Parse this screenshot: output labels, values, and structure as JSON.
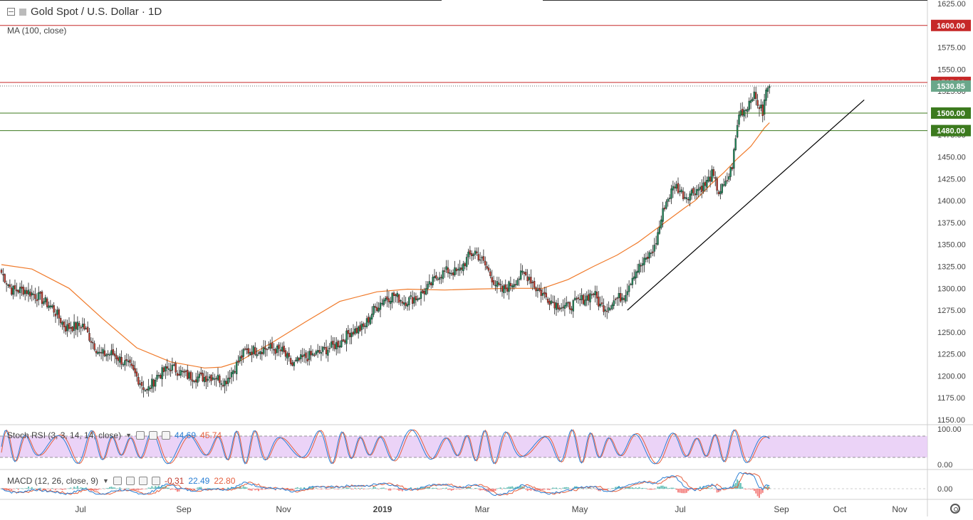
{
  "header": {
    "title": "Gold Spot / U.S. Dollar · 1D",
    "ma_label": "MA (100, close)"
  },
  "stoch": {
    "label": "Stoch RSI (3, 3, 14, 14, close)",
    "k": "44.69",
    "d": "45.74",
    "ticks": [
      "100.00",
      "0.00"
    ]
  },
  "macd": {
    "label": "MACD (12, 26, close, 9)",
    "hist": "-0.31",
    "macd": "22.49",
    "signal": "22.80",
    "ticks": [
      "0.00"
    ]
  },
  "colors": {
    "up": "#1f8a5b",
    "down": "#c0392b",
    "ma": "#f07a2a",
    "red_level": "#c62828",
    "green_level": "#3c7a1e",
    "trend": "#000000",
    "stoch_k": "#2a7fd4",
    "stoch_d": "#e55f3e",
    "stoch_band": "#e6c8f5"
  },
  "chart_data": [
    {
      "type": "candlestick",
      "title": "Gold Spot / U.S. Dollar · 1D",
      "ylim": [
        1150,
        1625
      ],
      "yticks": [
        "1625.00",
        "1600.00",
        "1575.00",
        "1550.00",
        "1525.00",
        "1500.00",
        "1475.00",
        "1450.00",
        "1425.00",
        "1400.00",
        "1375.00",
        "1350.00",
        "1325.00",
        "1300.00",
        "1275.00",
        "1250.00",
        "1225.00",
        "1200.00",
        "1175.00",
        "1150.00"
      ],
      "xticks": [
        "Jul",
        "Sep",
        "Nov",
        "2019",
        "Mar",
        "May",
        "Jul",
        "Sep",
        "Oct",
        "Nov"
      ],
      "anchors": [
        [
          0,
          1318
        ],
        [
          6,
          1298
        ],
        [
          14,
          1298
        ],
        [
          22,
          1290
        ],
        [
          30,
          1278
        ],
        [
          38,
          1255
        ],
        [
          48,
          1258
        ],
        [
          58,
          1225
        ],
        [
          66,
          1225
        ],
        [
          76,
          1210
        ],
        [
          86,
          1182
        ],
        [
          92,
          1200
        ],
        [
          100,
          1210
        ],
        [
          110,
          1200
        ],
        [
          118,
          1198
        ],
        [
          126,
          1200
        ],
        [
          132,
          1193
        ],
        [
          138,
          1210
        ],
        [
          144,
          1228
        ],
        [
          152,
          1230
        ],
        [
          158,
          1232
        ],
        [
          166,
          1228
        ],
        [
          172,
          1212
        ],
        [
          178,
          1220
        ],
        [
          186,
          1225
        ],
        [
          194,
          1232
        ],
        [
          200,
          1238
        ],
        [
          206,
          1250
        ],
        [
          214,
          1255
        ],
        [
          220,
          1275
        ],
        [
          226,
          1288
        ],
        [
          232,
          1292
        ],
        [
          238,
          1285
        ],
        [
          246,
          1290
        ],
        [
          252,
          1300
        ],
        [
          258,
          1315
        ],
        [
          264,
          1320
        ],
        [
          270,
          1318
        ],
        [
          276,
          1336
        ],
        [
          280,
          1342
        ],
        [
          286,
          1326
        ],
        [
          292,
          1305
        ],
        [
          296,
          1297
        ],
        [
          302,
          1306
        ],
        [
          308,
          1316
        ],
        [
          312,
          1313
        ],
        [
          316,
          1300
        ],
        [
          322,
          1290
        ],
        [
          328,
          1282
        ],
        [
          334,
          1278
        ],
        [
          340,
          1284
        ],
        [
          346,
          1290
        ],
        [
          350,
          1295
        ],
        [
          354,
          1280
        ],
        [
          358,
          1278
        ],
        [
          362,
          1286
        ],
        [
          368,
          1292
        ],
        [
          374,
          1318
        ],
        [
          380,
          1330
        ],
        [
          386,
          1346
        ],
        [
          392,
          1395
        ],
        [
          398,
          1418
        ],
        [
          404,
          1405
        ],
        [
          410,
          1412
        ],
        [
          416,
          1418
        ],
        [
          420,
          1430
        ],
        [
          424,
          1410
        ],
        [
          428,
          1418
        ],
        [
          432,
          1440
        ],
        [
          436,
          1500
        ],
        [
          440,
          1505
        ],
        [
          444,
          1522
        ],
        [
          446,
          1515
        ],
        [
          448,
          1508
        ],
        [
          450,
          1500
        ],
        [
          452,
          1525
        ],
        [
          454,
          1535
        ]
      ],
      "ma100": [
        [
          0,
          1327
        ],
        [
          18,
          1322
        ],
        [
          40,
          1300
        ],
        [
          60,
          1265
        ],
        [
          80,
          1232
        ],
        [
          100,
          1216
        ],
        [
          120,
          1209
        ],
        [
          130,
          1210
        ],
        [
          140,
          1216
        ],
        [
          160,
          1238
        ],
        [
          180,
          1262
        ],
        [
          200,
          1285
        ],
        [
          222,
          1296
        ],
        [
          240,
          1299
        ],
        [
          262,
          1298
        ],
        [
          278,
          1299
        ],
        [
          300,
          1300
        ],
        [
          320,
          1300
        ],
        [
          335,
          1310
        ],
        [
          350,
          1325
        ],
        [
          364,
          1338
        ],
        [
          376,
          1352
        ],
        [
          390,
          1372
        ],
        [
          404,
          1392
        ],
        [
          410,
          1400
        ],
        [
          414,
          1408
        ],
        [
          419,
          1418
        ],
        [
          427,
          1432
        ],
        [
          435,
          1448
        ],
        [
          443,
          1462
        ],
        [
          448,
          1475
        ],
        [
          451,
          1483
        ],
        [
          454,
          1489
        ]
      ],
      "levels": [
        {
          "label": "1600.00",
          "value": 1600,
          "color": "red"
        },
        {
          "label": "1535.00",
          "value": 1535,
          "color": "red"
        },
        {
          "label": "1500.00",
          "value": 1500,
          "color": "green"
        },
        {
          "label": "1480.00",
          "value": 1480,
          "color": "green"
        }
      ],
      "last_price": {
        "label": "1530.85",
        "value": 1530.85
      },
      "trendline": [
        [
          370,
          1275
        ],
        [
          510,
          1515
        ]
      ]
    },
    {
      "type": "line",
      "title": "Stoch RSI (3, 3, 14, 14, close)",
      "ylim": [
        0,
        100
      ],
      "bands": [
        20,
        80
      ]
    },
    {
      "type": "bar",
      "title": "MACD (12, 26, close, 9)"
    }
  ]
}
